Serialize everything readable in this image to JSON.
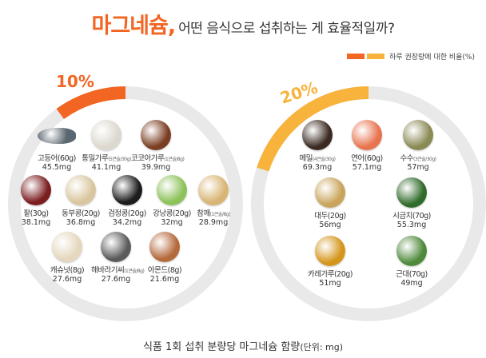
{
  "header": {
    "title_strong": "마그네슘,",
    "title_rest": "어떤 음식으로 섭취하는 게 효율적일까?"
  },
  "legend": {
    "label": "하루 권장량에 대한 비율(%)",
    "colors": [
      "#f26522",
      "#f7b33b"
    ]
  },
  "left_panel": {
    "percent": "10%",
    "color": "#f26522",
    "fraction": 0.1,
    "foods": [
      {
        "name": "고등어(60g)",
        "note": "",
        "value": "45.5mg",
        "icon": "mackerel-icon",
        "color": "#5a6670"
      },
      {
        "name": "통밀가루",
        "note": "(5큰술/30g)",
        "value": "41.1mg",
        "icon": "whole-wheat-flour-icon",
        "color": "#dcd8cf"
      },
      {
        "name": "코코아가루",
        "note": "(1큰술/8g)",
        "value": "39.9mg",
        "icon": "cocoa-powder-icon",
        "color": "#7a3e22"
      },
      {
        "name": "팥(30g)",
        "note": "",
        "value": "38.1mg",
        "icon": "red-bean-icon",
        "color": "#7b1e20"
      },
      {
        "name": "동부콩(20g)",
        "note": "",
        "value": "36.8mg",
        "icon": "cowpea-icon",
        "color": "#d9c6a0"
      },
      {
        "name": "검정콩(20g)",
        "note": "",
        "value": "34.2mg",
        "icon": "black-bean-icon",
        "color": "#1c1c1c"
      },
      {
        "name": "강낭콩(20g)",
        "note": "",
        "value": "32mg",
        "icon": "green-pea-icon",
        "color": "#8dc25a"
      },
      {
        "name": "참깨",
        "note": "(1큰술/8g)",
        "value": "28.9mg",
        "icon": "sesame-icon",
        "color": "#d8b574"
      },
      {
        "name": "캐슈넛(8g)",
        "note": "",
        "value": "27.6mg",
        "icon": "cashew-icon",
        "color": "#e4d7bd"
      },
      {
        "name": "해바라기씨",
        "note": "(1큰술/8g)",
        "value": "27.6mg",
        "icon": "sunflower-seed-icon",
        "color": "#5b5b5b"
      },
      {
        "name": "아몬드(8g)",
        "note": "",
        "value": "21.6mg",
        "icon": "almond-icon",
        "color": "#b56a3c"
      }
    ]
  },
  "right_panel": {
    "percent": "20%",
    "color": "#f7b33b",
    "fraction": 0.2,
    "foods": [
      {
        "name": "메밀",
        "note": "(4큰술/30g)",
        "value": "69.3mg",
        "icon": "buckwheat-icon",
        "color": "#3a2a22"
      },
      {
        "name": "연어(60g)",
        "note": "",
        "value": "57.1mg",
        "icon": "salmon-icon",
        "color": "#e8744f"
      },
      {
        "name": "수수",
        "note": "(3큰술/30g)",
        "value": "57mg",
        "icon": "sorghum-icon",
        "color": "#8a8a55"
      },
      {
        "name": "대두(20g)",
        "note": "",
        "value": "56mg",
        "icon": "soybean-icon",
        "color": "#c9a45a"
      },
      {
        "name": "시금치(70g)",
        "note": "",
        "value": "55.3mg",
        "icon": "spinach-icon",
        "color": "#2f6b2a"
      },
      {
        "name": "카레가루(20g)",
        "note": "",
        "value": "51mg",
        "icon": "curry-powder-icon",
        "color": "#d4951a"
      },
      {
        "name": "근대(70g)",
        "note": "",
        "value": "49mg",
        "icon": "chard-icon",
        "color": "#4f8a3c"
      }
    ]
  },
  "caption": {
    "main": "식품 1회 섭취 분량당 마그네슘 함량",
    "unit": "(단위: mg)"
  }
}
